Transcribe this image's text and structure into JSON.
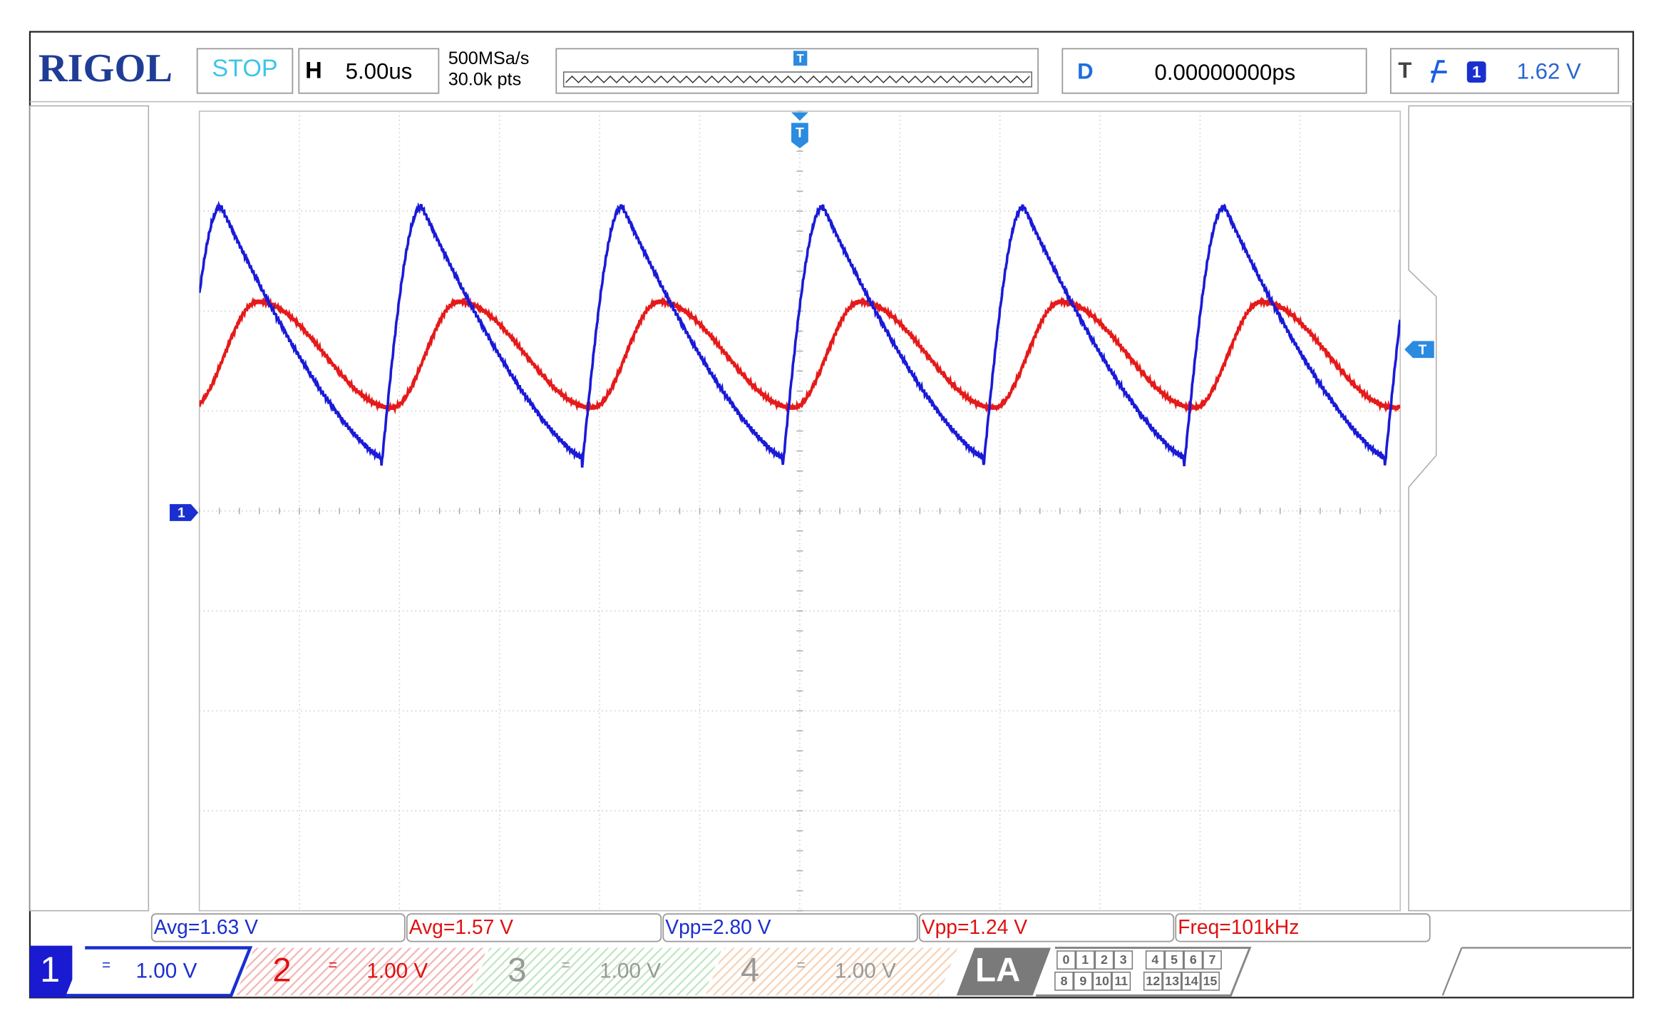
{
  "header": {
    "brand": "RIGOL",
    "status": "STOP",
    "timebase_label": "H",
    "timebase": "5.00us",
    "sample_rate": "500MSa/s",
    "memory_depth": "30.0k pts",
    "delay_label": "D",
    "delay": "0.00000000ps",
    "trigger_label": "T",
    "trigger_source": "1",
    "trigger_level": "1.62 V"
  },
  "markers": {
    "channel1": "1",
    "trigger_level": "T",
    "trigger_position": "T",
    "memory_trigger": "T"
  },
  "measurements": [
    "Avg=1.63 V",
    "Avg=1.57 V",
    "Vpp=2.80 V",
    "Vpp=1.24 V",
    "Freq=101kHz"
  ],
  "channels": [
    {
      "number": "1",
      "coupling": "=",
      "scale": "1.00 V"
    },
    {
      "number": "2",
      "coupling": "=",
      "scale": "1.00 V"
    },
    {
      "number": "3",
      "coupling": "=",
      "scale": "1.00 V"
    },
    {
      "number": "4",
      "coupling": "=",
      "scale": "1.00 V"
    }
  ],
  "logic_analyzer": {
    "label": "LA",
    "digital_channels": [
      "0",
      "1",
      "2",
      "3",
      "4",
      "5",
      "6",
      "7",
      "8",
      "9",
      "10",
      "11",
      "12",
      "13",
      "14",
      "15"
    ]
  }
}
